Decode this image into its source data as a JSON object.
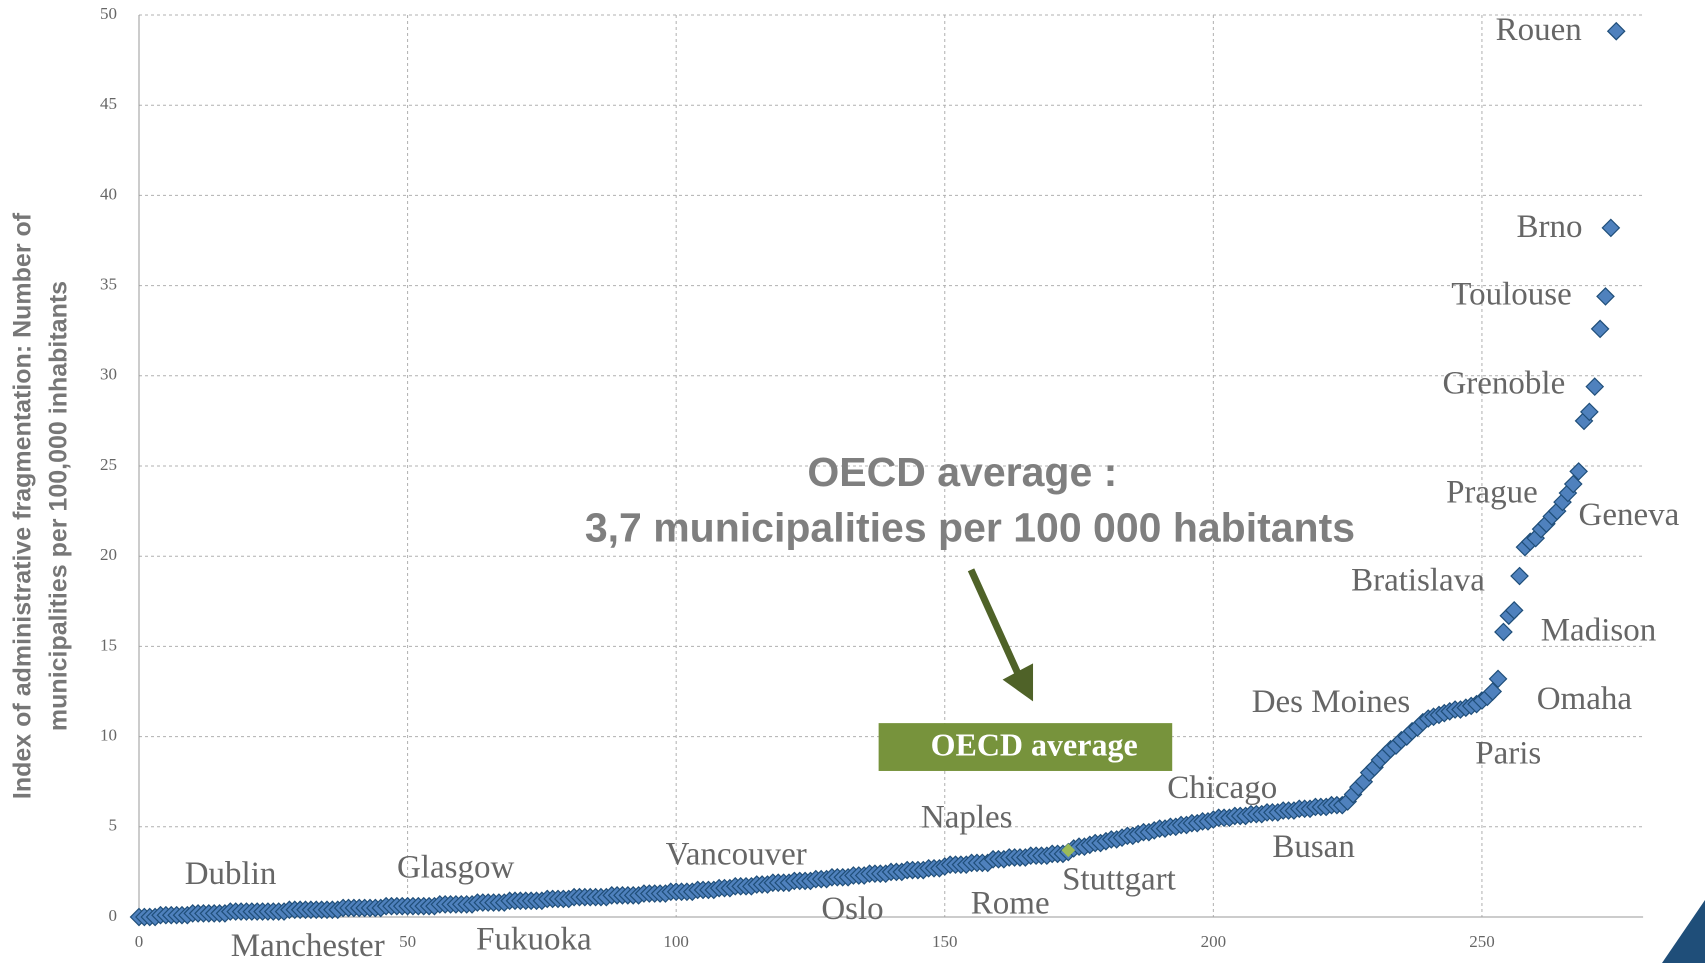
{
  "chart_data": {
    "type": "scatter",
    "ylabel": [
      "Index of administrative fragmentation: Number of",
      "municipalities per 100,000 inhabitants"
    ],
    "xlim": [
      0,
      280
    ],
    "xticks": [
      0,
      50,
      100,
      150,
      200,
      250
    ],
    "ylim": [
      0,
      50
    ],
    "yticks": [
      0,
      5,
      10,
      15,
      20,
      25,
      30,
      35,
      40,
      45,
      50
    ],
    "grid": true,
    "series": [
      {
        "color": "#4f81bd",
        "x": [
          0,
          1,
          2,
          3,
          4,
          5,
          6,
          7,
          8,
          9,
          10,
          11,
          12,
          13,
          14,
          15,
          16,
          17,
          18,
          19,
          20,
          21,
          22,
          23,
          24,
          25,
          26,
          27,
          28,
          29,
          30,
          31,
          32,
          33,
          34,
          35,
          36,
          37,
          38,
          39,
          40,
          41,
          42,
          43,
          44,
          45,
          46,
          47,
          48,
          49,
          50,
          51,
          52,
          53,
          54,
          55,
          56,
          57,
          58,
          59,
          60,
          61,
          62,
          63,
          64,
          65,
          66,
          67,
          68,
          69,
          70,
          71,
          72,
          73,
          74,
          75,
          76,
          77,
          78,
          79,
          80,
          81,
          82,
          83,
          84,
          85,
          86,
          87,
          88,
          89,
          90,
          91,
          92,
          93,
          94,
          95,
          96,
          97,
          98,
          99,
          100,
          101,
          102,
          103,
          104,
          105,
          106,
          107,
          108,
          109,
          110,
          111,
          112,
          113,
          114,
          115,
          116,
          117,
          118,
          119,
          120,
          121,
          122,
          123,
          124,
          125,
          126,
          127,
          128,
          129,
          130,
          131,
          132,
          133,
          134,
          135,
          136,
          137,
          138,
          139,
          140,
          141,
          142,
          143,
          144,
          145,
          146,
          147,
          148,
          149,
          150,
          151,
          152,
          153,
          154,
          155,
          156,
          157,
          158,
          159,
          160,
          161,
          162,
          163,
          164,
          165,
          166,
          167,
          168,
          169,
          170,
          171,
          172,
          173,
          174,
          175,
          176,
          177,
          178,
          179,
          180,
          181,
          182,
          183,
          184,
          185,
          186,
          187,
          188,
          189,
          190,
          191,
          192,
          193,
          194,
          195,
          196,
          197,
          198,
          199,
          200,
          201,
          202,
          203,
          204,
          205,
          206,
          207,
          208,
          209,
          210,
          211,
          212,
          213,
          214,
          215,
          216,
          217,
          218,
          219,
          220,
          221,
          222,
          223,
          224,
          225,
          226,
          227,
          228,
          229,
          230,
          231,
          232,
          233,
          234,
          235,
          236,
          237,
          238,
          239,
          240,
          241,
          242,
          243,
          244,
          245,
          246,
          247,
          248,
          249,
          250,
          251,
          252,
          253,
          254,
          255,
          256,
          257,
          258,
          259,
          260,
          261,
          262,
          263,
          264,
          265,
          266,
          267,
          268,
          269,
          270,
          271,
          272,
          273,
          274,
          275
        ],
        "values": [
          0.0,
          0.0,
          0.0,
          0.0,
          0.1,
          0.1,
          0.1,
          0.1,
          0.1,
          0.1,
          0.2,
          0.2,
          0.2,
          0.2,
          0.2,
          0.2,
          0.2,
          0.3,
          0.3,
          0.3,
          0.3,
          0.3,
          0.3,
          0.3,
          0.3,
          0.3,
          0.3,
          0.3,
          0.4,
          0.4,
          0.4,
          0.4,
          0.4,
          0.4,
          0.4,
          0.4,
          0.4,
          0.4,
          0.5,
          0.5,
          0.5,
          0.5,
          0.5,
          0.5,
          0.5,
          0.5,
          0.6,
          0.6,
          0.6,
          0.6,
          0.6,
          0.6,
          0.6,
          0.6,
          0.6,
          0.6,
          0.7,
          0.7,
          0.7,
          0.7,
          0.7,
          0.7,
          0.7,
          0.8,
          0.8,
          0.8,
          0.8,
          0.8,
          0.8,
          0.9,
          0.9,
          0.9,
          0.9,
          0.9,
          0.9,
          0.9,
          1.0,
          1.0,
          1.0,
          1.0,
          1.0,
          1.1,
          1.1,
          1.1,
          1.1,
          1.1,
          1.1,
          1.1,
          1.2,
          1.2,
          1.2,
          1.2,
          1.2,
          1.2,
          1.3,
          1.3,
          1.3,
          1.3,
          1.3,
          1.4,
          1.4,
          1.4,
          1.4,
          1.4,
          1.5,
          1.5,
          1.5,
          1.5,
          1.6,
          1.6,
          1.6,
          1.7,
          1.7,
          1.7,
          1.7,
          1.8,
          1.8,
          1.8,
          1.9,
          1.9,
          1.9,
          1.9,
          2.0,
          2.0,
          2.0,
          2.0,
          2.1,
          2.1,
          2.1,
          2.2,
          2.2,
          2.2,
          2.2,
          2.3,
          2.3,
          2.3,
          2.4,
          2.4,
          2.4,
          2.4,
          2.5,
          2.5,
          2.5,
          2.6,
          2.6,
          2.6,
          2.6,
          2.7,
          2.7,
          2.7,
          2.8,
          2.9,
          2.9,
          2.9,
          2.9,
          3.0,
          3.0,
          3.0,
          3.0,
          3.2,
          3.2,
          3.2,
          3.3,
          3.3,
          3.3,
          3.3,
          3.4,
          3.4,
          3.4,
          3.4,
          3.5,
          3.5,
          3.5,
          3.6,
          3.8,
          3.9,
          3.9,
          4.0,
          4.1,
          4.1,
          4.2,
          4.3,
          4.3,
          4.4,
          4.5,
          4.5,
          4.6,
          4.7,
          4.7,
          4.8,
          4.9,
          4.9,
          5.0,
          5.0,
          5.1,
          5.1,
          5.2,
          5.2,
          5.3,
          5.3,
          5.4,
          5.5,
          5.5,
          5.5,
          5.6,
          5.6,
          5.6,
          5.7,
          5.7,
          5.7,
          5.8,
          5.8,
          5.8,
          5.9,
          5.9,
          5.9,
          6.0,
          6.0,
          6.0,
          6.1,
          6.1,
          6.1,
          6.2,
          6.2,
          6.2,
          6.4,
          6.8,
          7.2,
          7.5,
          8.0,
          8.3,
          8.7,
          9.0,
          9.3,
          9.5,
          9.8,
          10.0,
          10.3,
          10.5,
          10.8,
          11.0,
          11.1,
          11.2,
          11.3,
          11.4,
          11.5,
          11.5,
          11.6,
          11.7,
          11.8,
          12.0,
          12.2,
          12.5,
          13.2,
          15.8,
          16.7,
          17.0,
          18.9,
          20.5,
          20.8,
          21.0,
          21.5,
          21.8,
          22.2,
          22.5,
          23.0,
          23.5,
          24.0,
          24.7,
          27.5,
          28.0,
          29.4,
          32.6,
          34.4,
          38.2,
          49.1
        ]
      },
      {
        "color": "#9bbb59",
        "x": [
          173
        ],
        "values": [
          3.7
        ]
      }
    ],
    "annotations": [
      "Rouen",
      "Brno",
      "Toulouse",
      "Grenoble",
      "Prague",
      "Geneva",
      "Bratislava",
      "Madison",
      "Des Moines",
      "Omaha",
      "Paris",
      "Chicago",
      "Busan",
      "Naples",
      "Stuttgart",
      "Rome",
      "Oslo",
      "Vancouver",
      "Glasgow",
      "Dublin",
      "Manchester",
      "Fukuoka"
    ],
    "callout": [
      "OECD average  :",
      "3,7 municipalities per 100 000 habitants"
    ],
    "badge": "OECD average"
  }
}
